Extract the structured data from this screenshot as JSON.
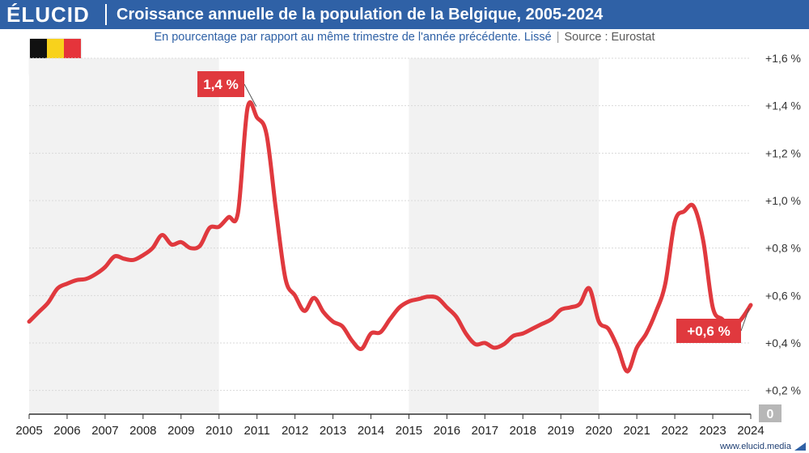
{
  "header": {
    "logo": "ÉLUCID",
    "title": "Croissance annuelle de la population de la Belgique, 2005-2024"
  },
  "subtitle": {
    "text": "En pourcentage par rapport au même trimestre de l'année précédente. Lissé",
    "source": "Source : Eurostat"
  },
  "flag": {
    "colors": [
      "#111111",
      "#f8d21c",
      "#e5343b"
    ]
  },
  "footer": {
    "url": "www.elucid.media"
  },
  "colors": {
    "brand": "#2f61a6",
    "series": "#e0393e",
    "zero_badge": "#b7b7b7"
  },
  "chart_data": {
    "type": "line",
    "title": "Croissance annuelle de la population de la Belgique, 2005-2024",
    "xlabel": "",
    "ylabel": "",
    "xlim": [
      2005,
      2024
    ],
    "ylim": [
      0.1,
      1.6
    ],
    "grid": true,
    "ytick_values": [
      0.2,
      0.4,
      0.6,
      0.8,
      1.0,
      1.2,
      1.4,
      1.6
    ],
    "ytick_labels": [
      "+0,2 %",
      "+0,4 %",
      "+0,6 %",
      "+0,8 %",
      "+1,0 %",
      "+1,2 %",
      "+1,4 %",
      "+1,6 %"
    ],
    "xtick_values": [
      2005,
      2006,
      2007,
      2008,
      2009,
      2010,
      2011,
      2012,
      2013,
      2014,
      2015,
      2016,
      2017,
      2018,
      2019,
      2020,
      2021,
      2022,
      2023,
      2024
    ],
    "xtick_labels": [
      "2005",
      "2006",
      "2007",
      "2008",
      "2009",
      "2010",
      "2011",
      "2012",
      "2013",
      "2014",
      "2015",
      "2016",
      "2017",
      "2018",
      "2019",
      "2020",
      "2021",
      "2022",
      "2023",
      "2024"
    ],
    "shaded_bands": [
      [
        2005,
        2010
      ],
      [
        2015,
        2020
      ]
    ],
    "zero_label": "0",
    "series": [
      {
        "name": "Croissance annuelle",
        "x": [
          2005,
          2005.25,
          2005.5,
          2005.75,
          2006,
          2006.25,
          2006.5,
          2006.75,
          2007,
          2007.25,
          2007.5,
          2007.75,
          2008,
          2008.25,
          2008.5,
          2008.75,
          2009,
          2009.25,
          2009.5,
          2009.75,
          2010,
          2010.25,
          2010.5,
          2010.75,
          2011,
          2011.25,
          2011.5,
          2011.75,
          2012,
          2012.25,
          2012.5,
          2012.75,
          2013,
          2013.25,
          2013.5,
          2013.75,
          2014,
          2014.25,
          2014.5,
          2014.75,
          2015,
          2015.25,
          2015.5,
          2015.75,
          2016,
          2016.25,
          2016.5,
          2016.75,
          2017,
          2017.25,
          2017.5,
          2017.75,
          2018,
          2018.25,
          2018.5,
          2018.75,
          2019,
          2019.25,
          2019.5,
          2019.75,
          2020,
          2020.25,
          2020.5,
          2020.75,
          2021,
          2021.25,
          2021.5,
          2021.75,
          2022,
          2022.25,
          2022.5,
          2022.75,
          2023,
          2023.25,
          2023.5,
          2023.75,
          2024
        ],
        "values": [
          0.49,
          0.53,
          0.57,
          0.63,
          0.65,
          0.665,
          0.67,
          0.69,
          0.72,
          0.765,
          0.755,
          0.75,
          0.77,
          0.8,
          0.855,
          0.815,
          0.825,
          0.8,
          0.81,
          0.885,
          0.89,
          0.93,
          0.95,
          1.39,
          1.35,
          1.28,
          0.96,
          0.67,
          0.6,
          0.535,
          0.59,
          0.53,
          0.49,
          0.47,
          0.41,
          0.375,
          0.44,
          0.445,
          0.5,
          0.55,
          0.575,
          0.585,
          0.595,
          0.59,
          0.55,
          0.51,
          0.44,
          0.395,
          0.4,
          0.38,
          0.395,
          0.43,
          0.44,
          0.46,
          0.48,
          0.5,
          0.54,
          0.55,
          0.565,
          0.63,
          0.49,
          0.46,
          0.38,
          0.28,
          0.38,
          0.44,
          0.53,
          0.65,
          0.91,
          0.955,
          0.975,
          0.83,
          0.55,
          0.5,
          0.465,
          0.5,
          0.56
        ]
      }
    ],
    "annotations": [
      {
        "text": "1,4 %",
        "x": 2011,
        "y": 1.39
      },
      {
        "text": "+0,6 %",
        "x": 2024,
        "y": 0.56
      }
    ]
  }
}
